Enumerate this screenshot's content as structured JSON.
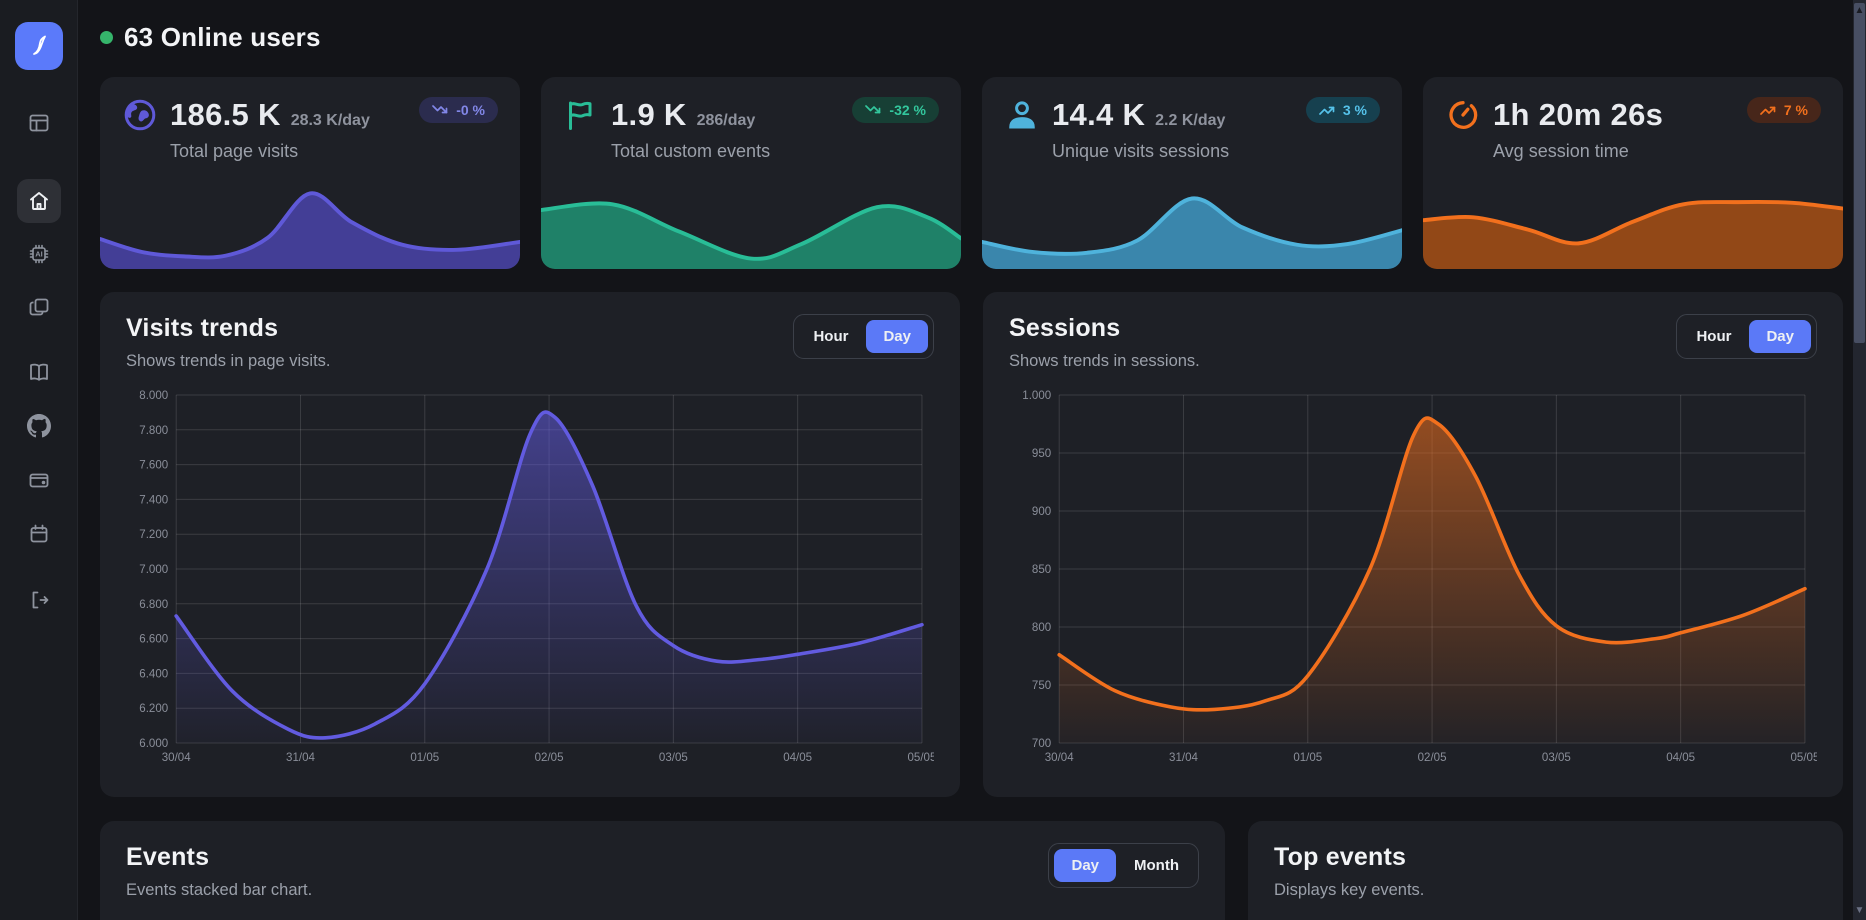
{
  "header": {
    "title": "63 Online users",
    "dot_color": "#35b56b"
  },
  "sidebar": {
    "logo": "analytics-app-logo",
    "items": [
      {
        "name": "dashboard",
        "icon": "layout-icon",
        "active": false
      },
      {
        "name": "home",
        "icon": "home-icon",
        "active": true
      },
      {
        "name": "ai-assistant",
        "icon": "ai-chip-icon",
        "active": false
      },
      {
        "name": "pages",
        "icon": "copy-icon",
        "active": false
      },
      {
        "name": "documentation",
        "icon": "book-icon",
        "active": false
      },
      {
        "name": "github",
        "icon": "github-icon",
        "active": false
      },
      {
        "name": "wallet",
        "icon": "wallet-icon",
        "active": false
      },
      {
        "name": "calendar",
        "icon": "calendar-icon",
        "active": false
      },
      {
        "name": "logout",
        "icon": "logout-icon",
        "active": false
      }
    ]
  },
  "stat_cards": [
    {
      "label": "Total page visits",
      "value": "186.5 K",
      "rate": "28.3 K/day",
      "badge": "-0 %",
      "trend": "down",
      "icon": "globe-icon",
      "accent": "#5f59d8",
      "fill": "#46419f",
      "badge_bg": "#2b2c4e",
      "badge_fg": "#8287e8"
    },
    {
      "label": "Total custom events",
      "value": "1.9 K",
      "rate": "286/day",
      "badge": "-32 %",
      "trend": "down",
      "icon": "flag-icon",
      "accent": "#29bd97",
      "fill": "#1f8a6e",
      "badge_bg": "#173f35",
      "badge_fg": "#33c79d"
    },
    {
      "label": "Unique visits sessions",
      "value": "14.4 K",
      "rate": "2.2 K/day",
      "badge": "3 %",
      "trend": "up",
      "icon": "user-icon",
      "accent": "#4fb3dc",
      "fill": "#3d8fb7",
      "badge_bg": "#16404f",
      "badge_fg": "#55c2ea"
    },
    {
      "label": "Avg session time",
      "value": "1h 20m 26s",
      "rate": "",
      "badge": "7 %",
      "trend": "up",
      "icon": "timer-icon",
      "accent": "#f2701d",
      "fill": "#9c4c16",
      "badge_bg": "#47261a",
      "badge_fg": "#f2701d"
    }
  ],
  "panels": {
    "visits": {
      "title": "Visits trends",
      "subtitle": "Shows trends in page visits.",
      "toggle": [
        "Hour",
        "Day"
      ],
      "active": "Day"
    },
    "sessions": {
      "title": "Sessions",
      "subtitle": "Shows trends in sessions.",
      "toggle": [
        "Hour",
        "Day"
      ],
      "active": "Day"
    },
    "events": {
      "title": "Events",
      "subtitle": "Events stacked bar chart.",
      "toggle": [
        "Day",
        "Month"
      ],
      "active": "Day"
    },
    "top_events": {
      "title": "Top events",
      "subtitle": "Displays key events."
    }
  },
  "toggle_active_color": "#5b79f7",
  "chart_data": [
    {
      "type": "area",
      "title": "Visits trends",
      "legend": false,
      "grid": true,
      "x_labels": [
        "30/04",
        "31/04",
        "01/05",
        "02/05",
        "03/05",
        "04/05",
        "05/05"
      ],
      "x": [
        0,
        0.45,
        0.9,
        1.2,
        1.6,
        2,
        2.5,
        2.85,
        3.05,
        3.35,
        3.7,
        4,
        4.35,
        4.7,
        5,
        5.5,
        6
      ],
      "y": [
        6730,
        6300,
        6080,
        6030,
        6110,
        6340,
        7000,
        7780,
        7870,
        7480,
        6790,
        6560,
        6470,
        6480,
        6510,
        6575,
        6680
      ],
      "ylim": [
        6000,
        8000
      ],
      "ytick_step": 200,
      "line_color": "#625be0"
    },
    {
      "type": "area",
      "title": "Sessions",
      "legend": false,
      "grid": true,
      "x_labels": [
        "30/04",
        "31/04",
        "01/05",
        "02/05",
        "03/05",
        "04/05",
        "05/05"
      ],
      "x": [
        0,
        0.45,
        0.9,
        1.25,
        1.65,
        2,
        2.5,
        2.85,
        3.05,
        3.35,
        3.7,
        4,
        4.4,
        4.8,
        5,
        5.5,
        6
      ],
      "y": [
        776,
        745,
        731,
        729,
        736,
        758,
        850,
        965,
        975,
        930,
        845,
        801,
        787,
        790,
        795,
        810,
        833
      ],
      "ylim": [
        700,
        1000
      ],
      "ytick_step": 50,
      "line_color": "#f2701d"
    },
    {
      "type": "sparkline",
      "title": "Total page visits trend",
      "color": "#5f59d8",
      "fill": "#46419f",
      "points": [
        [
          0,
          0.32
        ],
        [
          0.1,
          0.14
        ],
        [
          0.2,
          0.08
        ],
        [
          0.3,
          0.09
        ],
        [
          0.4,
          0.34
        ],
        [
          0.5,
          0.95
        ],
        [
          0.6,
          0.55
        ],
        [
          0.72,
          0.24
        ],
        [
          0.85,
          0.17
        ],
        [
          1,
          0.28
        ]
      ]
    },
    {
      "type": "sparkline",
      "title": "Total custom events trend",
      "color": "#29bd97",
      "fill": "#1f8a6e",
      "points": [
        [
          0,
          0.72
        ],
        [
          0.17,
          0.8
        ],
        [
          0.33,
          0.42
        ],
        [
          0.5,
          0.05
        ],
        [
          0.62,
          0.25
        ],
        [
          0.8,
          0.76
        ],
        [
          0.92,
          0.62
        ],
        [
          1,
          0.33
        ]
      ]
    },
    {
      "type": "sparkline",
      "title": "Unique visits sessions trend",
      "color": "#4fb3dc",
      "fill": "#3d8fb7",
      "points": [
        [
          0,
          0.28
        ],
        [
          0.12,
          0.14
        ],
        [
          0.25,
          0.13
        ],
        [
          0.37,
          0.3
        ],
        [
          0.5,
          0.88
        ],
        [
          0.62,
          0.48
        ],
        [
          0.75,
          0.24
        ],
        [
          0.87,
          0.25
        ],
        [
          1,
          0.44
        ]
      ]
    },
    {
      "type": "sparkline",
      "title": "Avg session time trend",
      "color": "#f2701d",
      "fill": "#9c4c16",
      "points": [
        [
          0,
          0.58
        ],
        [
          0.12,
          0.62
        ],
        [
          0.25,
          0.45
        ],
        [
          0.37,
          0.26
        ],
        [
          0.5,
          0.56
        ],
        [
          0.62,
          0.8
        ],
        [
          0.75,
          0.83
        ],
        [
          0.88,
          0.82
        ],
        [
          1,
          0.74
        ]
      ]
    }
  ]
}
